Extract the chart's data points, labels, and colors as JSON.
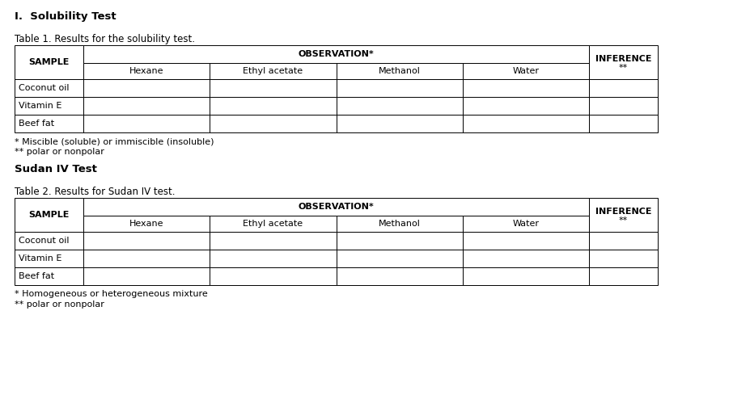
{
  "title1": "I.  Solubility Test",
  "table1_caption": "Table 1. Results for the solubility test.",
  "table2_caption": "Table 2. Results for Sudan IV test.",
  "title2": "Sudan IV Test",
  "obs_header": "OBSERVATION*",
  "inference_header": "INFERENCE",
  "sample_header": "SAMPLE",
  "col_headers": [
    "Hexane",
    "Ethyl acetate",
    "Methanol",
    "Water"
  ],
  "inference_sub": "**",
  "samples": [
    "Coconut oil",
    "Vitamin E",
    "Beef fat"
  ],
  "footnote1_t1": "* Miscible (soluble) or immiscible (insoluble)",
  "footnote2_t1": "** polar or nonpolar",
  "footnote1_t2": "* Homogeneous or heterogeneous mixture",
  "footnote2_t2": "** polar or nonpolar",
  "bg_color": "#ffffff",
  "line_color": "#000000",
  "text_color": "#000000",
  "fig_width": 9.06,
  "fig_height": 4.94,
  "dpi": 100
}
